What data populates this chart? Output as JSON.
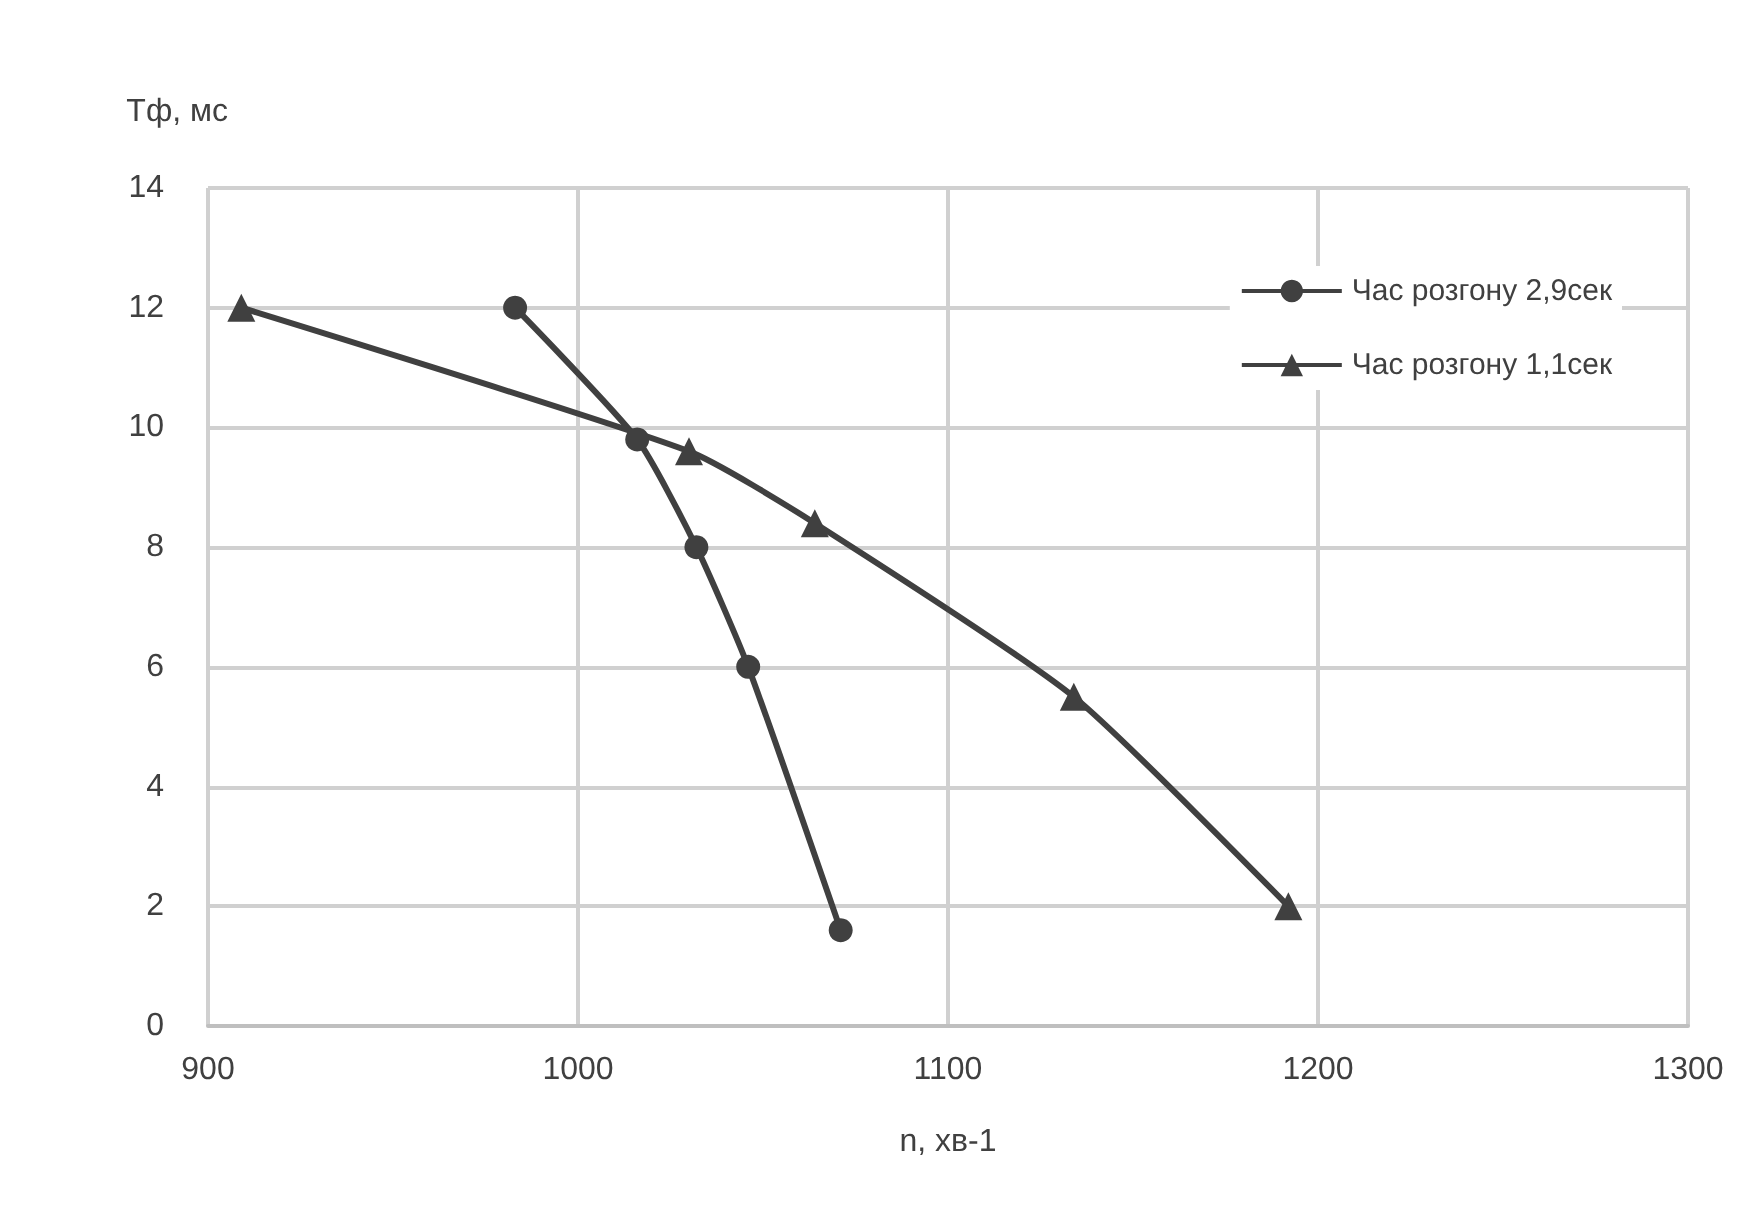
{
  "chart_data": {
    "type": "line",
    "xlabel": "n, хв-1",
    "ylabel": "Тф, мс",
    "xlim": [
      900,
      1300
    ],
    "xticks": [
      900,
      1000,
      1100,
      1200,
      1300
    ],
    "ylim": [
      0,
      14
    ],
    "yticks": [
      0,
      2,
      4,
      6,
      8,
      10,
      12,
      14
    ],
    "grid": true,
    "legend": "top right",
    "series": [
      {
        "name": "Час розгону 2,9сек",
        "color": "#404040",
        "marker": "circle",
        "x": [
          983,
          1016,
          1032,
          1046,
          1071
        ],
        "values": [
          12,
          9.8,
          8,
          6,
          1.6
        ]
      },
      {
        "name": "Час розгону 1,1сек",
        "color": "#404040",
        "marker": "triangle",
        "x": [
          909,
          1030,
          1064,
          1134,
          1192
        ],
        "values": [
          12,
          9.6,
          8.4,
          5.5,
          2
        ]
      }
    ]
  }
}
